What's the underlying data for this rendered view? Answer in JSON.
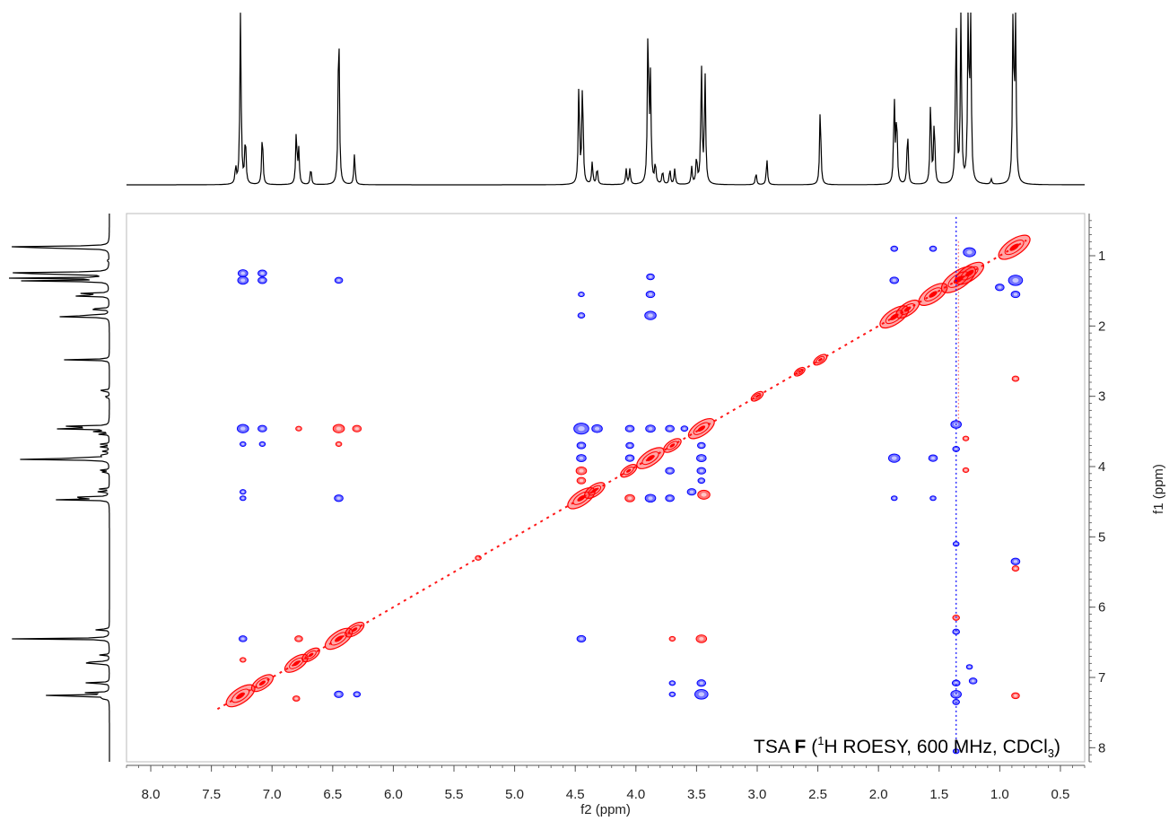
{
  "chart_data": {
    "type": "heatmap",
    "annotation": {
      "prefix": "TSA ",
      "bold": "F",
      "open": " (",
      "sup": "1",
      "mid": "H ROESY,  600 MHz, CDCl",
      "sub": "3",
      "close": ")"
    },
    "x_axis": {
      "label": "f2 (ppm)",
      "range": [
        8.2,
        0.3
      ],
      "ticks": [
        "8.0",
        "7.5",
        "7.0",
        "6.5",
        "6.0",
        "5.5",
        "5.0",
        "4.5",
        "4.0",
        "3.5",
        "3.0",
        "2.5",
        "2.0",
        "1.5",
        "1.0",
        "0.5"
      ],
      "tick_values": [
        8.0,
        7.5,
        7.0,
        6.5,
        6.0,
        5.5,
        5.0,
        4.5,
        4.0,
        3.5,
        3.0,
        2.5,
        2.0,
        1.5,
        1.0,
        0.5
      ]
    },
    "y_axis": {
      "label": "f1 (ppm)",
      "range": [
        0.4,
        8.2
      ],
      "ticks": [
        "1",
        "2",
        "3",
        "4",
        "5",
        "6",
        "7",
        "8"
      ],
      "tick_values": [
        1,
        2,
        3,
        4,
        5,
        6,
        7,
        8
      ]
    },
    "spectrum_1d": [
      {
        "ppm": 7.3,
        "height": 0.1
      },
      {
        "ppm": 7.26,
        "height": 1.0
      },
      {
        "ppm": 7.22,
        "height": 0.28
      },
      {
        "ppm": 7.08,
        "height": 0.31
      },
      {
        "ppm": 6.8,
        "height": 0.31
      },
      {
        "ppm": 6.78,
        "height": 0.2
      },
      {
        "ppm": 6.68,
        "height": 0.1
      },
      {
        "ppm": 6.45,
        "height": 1.0
      },
      {
        "ppm": 6.32,
        "height": 0.18
      },
      {
        "ppm": 4.47,
        "height": 0.59
      },
      {
        "ppm": 4.44,
        "height": 0.6
      },
      {
        "ppm": 4.36,
        "height": 0.13
      },
      {
        "ppm": 4.32,
        "height": 0.1
      },
      {
        "ppm": 4.08,
        "height": 0.09
      },
      {
        "ppm": 4.05,
        "height": 0.09
      },
      {
        "ppm": 3.9,
        "height": 0.93
      },
      {
        "ppm": 3.88,
        "height": 0.6
      },
      {
        "ppm": 3.84,
        "height": 0.12
      },
      {
        "ppm": 3.78,
        "height": 0.08
      },
      {
        "ppm": 3.72,
        "height": 0.09
      },
      {
        "ppm": 3.68,
        "height": 0.09
      },
      {
        "ppm": 3.54,
        "height": 0.1
      },
      {
        "ppm": 3.5,
        "height": 0.16
      },
      {
        "ppm": 3.46,
        "height": 0.7
      },
      {
        "ppm": 3.43,
        "height": 0.64
      },
      {
        "ppm": 3.01,
        "height": 0.07
      },
      {
        "ppm": 2.92,
        "height": 0.15
      },
      {
        "ppm": 2.48,
        "height": 0.46
      },
      {
        "ppm": 1.87,
        "height": 0.5
      },
      {
        "ppm": 1.85,
        "height": 0.4
      },
      {
        "ppm": 1.76,
        "height": 0.32
      },
      {
        "ppm": 1.57,
        "height": 0.5
      },
      {
        "ppm": 1.54,
        "height": 0.38
      },
      {
        "ppm": 1.36,
        "height": 1.0
      },
      {
        "ppm": 1.32,
        "height": 1.0
      },
      {
        "ppm": 1.26,
        "height": 1.0
      },
      {
        "ppm": 1.24,
        "height": 1.0
      },
      {
        "ppm": 1.07,
        "height": 0.03
      },
      {
        "ppm": 0.89,
        "height": 1.0
      },
      {
        "ppm": 0.87,
        "height": 1.0
      }
    ],
    "diagonal_peaks": [
      {
        "ppm": 7.26,
        "size": 1.6
      },
      {
        "ppm": 7.08,
        "size": 1.1
      },
      {
        "ppm": 6.8,
        "size": 1.2
      },
      {
        "ppm": 6.68,
        "size": 0.8
      },
      {
        "ppm": 6.45,
        "size": 1.5
      },
      {
        "ppm": 6.32,
        "size": 0.9
      },
      {
        "ppm": 4.45,
        "size": 1.5
      },
      {
        "ppm": 4.34,
        "size": 1.0
      },
      {
        "ppm": 4.06,
        "size": 0.7
      },
      {
        "ppm": 3.88,
        "size": 1.5
      },
      {
        "ppm": 3.7,
        "size": 0.8
      },
      {
        "ppm": 3.46,
        "size": 1.4
      },
      {
        "ppm": 3.0,
        "size": 0.4
      },
      {
        "ppm": 2.65,
        "size": 0.3
      },
      {
        "ppm": 2.48,
        "size": 0.5
      },
      {
        "ppm": 1.87,
        "size": 1.6
      },
      {
        "ppm": 1.76,
        "size": 1.2
      },
      {
        "ppm": 1.55,
        "size": 1.6
      },
      {
        "ppm": 1.34,
        "size": 2.0
      },
      {
        "ppm": 1.25,
        "size": 1.6
      },
      {
        "ppm": 0.88,
        "size": 1.8
      }
    ],
    "cross_peaks": [
      {
        "f2": 7.24,
        "f1": 1.25,
        "sign": "negative",
        "size": 0.7
      },
      {
        "f2": 7.24,
        "f1": 1.35,
        "sign": "negative",
        "size": 0.8
      },
      {
        "f2": 7.08,
        "f1": 1.25,
        "sign": "negative",
        "size": 0.6
      },
      {
        "f2": 7.08,
        "f1": 1.35,
        "sign": "negative",
        "size": 0.6
      },
      {
        "f2": 6.45,
        "f1": 1.35,
        "sign": "negative",
        "size": 0.5
      },
      {
        "f2": 3.88,
        "f1": 1.3,
        "sign": "negative",
        "size": 0.5
      },
      {
        "f2": 3.88,
        "f1": 1.55,
        "sign": "negative",
        "size": 0.6
      },
      {
        "f2": 3.88,
        "f1": 1.85,
        "sign": "negative",
        "size": 0.9
      },
      {
        "f2": 4.45,
        "f1": 1.55,
        "sign": "negative",
        "size": 0.3
      },
      {
        "f2": 4.45,
        "f1": 1.85,
        "sign": "negative",
        "size": 0.4
      },
      {
        "f2": 7.24,
        "f1": 3.46,
        "sign": "negative",
        "size": 0.9
      },
      {
        "f2": 7.08,
        "f1": 3.46,
        "sign": "negative",
        "size": 0.6
      },
      {
        "f2": 6.78,
        "f1": 3.46,
        "sign": "positive",
        "size": 0.3
      },
      {
        "f2": 6.45,
        "f1": 3.46,
        "sign": "positive",
        "size": 0.9
      },
      {
        "f2": 6.3,
        "f1": 3.46,
        "sign": "positive",
        "size": 0.6
      },
      {
        "f2": 7.24,
        "f1": 3.68,
        "sign": "negative",
        "size": 0.3
      },
      {
        "f2": 7.08,
        "f1": 3.68,
        "sign": "negative",
        "size": 0.3
      },
      {
        "f2": 6.45,
        "f1": 3.68,
        "sign": "positive",
        "size": 0.3
      },
      {
        "f2": 7.24,
        "f1": 4.36,
        "sign": "negative",
        "size": 0.3
      },
      {
        "f2": 7.24,
        "f1": 4.45,
        "sign": "negative",
        "size": 0.3
      },
      {
        "f2": 6.45,
        "f1": 4.45,
        "sign": "negative",
        "size": 0.6
      },
      {
        "f2": 4.45,
        "f1": 3.46,
        "sign": "negative",
        "size": 1.3
      },
      {
        "f2": 4.32,
        "f1": 3.46,
        "sign": "negative",
        "size": 0.8
      },
      {
        "f2": 4.05,
        "f1": 3.46,
        "sign": "negative",
        "size": 0.6
      },
      {
        "f2": 3.88,
        "f1": 3.46,
        "sign": "negative",
        "size": 0.7
      },
      {
        "f2": 3.72,
        "f1": 3.46,
        "sign": "negative",
        "size": 0.6
      },
      {
        "f2": 3.6,
        "f1": 3.46,
        "sign": "negative",
        "size": 0.4
      },
      {
        "f2": 4.45,
        "f1": 3.7,
        "sign": "negative",
        "size": 0.6
      },
      {
        "f2": 4.05,
        "f1": 3.7,
        "sign": "negative",
        "size": 0.5
      },
      {
        "f2": 3.46,
        "f1": 3.7,
        "sign": "negative",
        "size": 0.5
      },
      {
        "f2": 4.45,
        "f1": 3.88,
        "sign": "negative",
        "size": 0.7
      },
      {
        "f2": 4.05,
        "f1": 3.88,
        "sign": "negative",
        "size": 0.6
      },
      {
        "f2": 3.46,
        "f1": 3.88,
        "sign": "negative",
        "size": 0.7
      },
      {
        "f2": 4.45,
        "f1": 4.06,
        "sign": "positive",
        "size": 0.8
      },
      {
        "f2": 3.72,
        "f1": 4.06,
        "sign": "negative",
        "size": 0.6
      },
      {
        "f2": 3.46,
        "f1": 4.06,
        "sign": "negative",
        "size": 0.6
      },
      {
        "f2": 4.45,
        "f1": 4.2,
        "sign": "positive",
        "size": 0.6
      },
      {
        "f2": 3.46,
        "f1": 4.2,
        "sign": "negative",
        "size": 0.4
      },
      {
        "f2": 4.05,
        "f1": 4.45,
        "sign": "positive",
        "size": 0.7
      },
      {
        "f2": 3.88,
        "f1": 4.45,
        "sign": "negative",
        "size": 0.8
      },
      {
        "f2": 3.72,
        "f1": 4.45,
        "sign": "negative",
        "size": 0.6
      },
      {
        "f2": 3.54,
        "f1": 4.36,
        "sign": "negative",
        "size": 0.6
      },
      {
        "f2": 3.44,
        "f1": 4.4,
        "sign": "positive",
        "size": 1.0
      },
      {
        "f2": 1.87,
        "f1": 3.88,
        "sign": "negative",
        "size": 0.9
      },
      {
        "f2": 1.55,
        "f1": 3.88,
        "sign": "negative",
        "size": 0.6
      },
      {
        "f2": 1.87,
        "f1": 4.45,
        "sign": "negative",
        "size": 0.3
      },
      {
        "f2": 1.55,
        "f1": 4.45,
        "sign": "negative",
        "size": 0.3
      },
      {
        "f2": 1.36,
        "f1": 3.4,
        "sign": "negative",
        "size": 0.8
      },
      {
        "f2": 1.36,
        "f1": 3.75,
        "sign": "negative",
        "size": 0.4
      },
      {
        "f2": 1.28,
        "f1": 3.6,
        "sign": "positive",
        "size": 0.3
      },
      {
        "f2": 1.28,
        "f1": 4.05,
        "sign": "positive",
        "size": 0.3
      },
      {
        "f2": 0.87,
        "f1": 2.75,
        "sign": "positive",
        "size": 0.4
      },
      {
        "f2": 0.87,
        "f1": 5.35,
        "sign": "negative",
        "size": 0.6
      },
      {
        "f2": 0.87,
        "f1": 5.45,
        "sign": "positive",
        "size": 0.4
      },
      {
        "f2": 1.36,
        "f1": 5.1,
        "sign": "negative",
        "size": 0.3
      },
      {
        "f2": 5.3,
        "f1": 5.3,
        "sign": "positive",
        "size": 0.3
      },
      {
        "f2": 7.24,
        "f1": 6.45,
        "sign": "negative",
        "size": 0.5
      },
      {
        "f2": 7.24,
        "f1": 6.75,
        "sign": "positive",
        "size": 0.3
      },
      {
        "f2": 6.78,
        "f1": 6.45,
        "sign": "positive",
        "size": 0.5
      },
      {
        "f2": 6.8,
        "f1": 7.3,
        "sign": "positive",
        "size": 0.4
      },
      {
        "f2": 6.45,
        "f1": 7.24,
        "sign": "negative",
        "size": 0.6
      },
      {
        "f2": 6.3,
        "f1": 7.24,
        "sign": "negative",
        "size": 0.4
      },
      {
        "f2": 4.45,
        "f1": 6.45,
        "sign": "negative",
        "size": 0.6
      },
      {
        "f2": 3.46,
        "f1": 6.45,
        "sign": "positive",
        "size": 0.8
      },
      {
        "f2": 3.7,
        "f1": 6.45,
        "sign": "positive",
        "size": 0.3
      },
      {
        "f2": 3.46,
        "f1": 7.08,
        "sign": "negative",
        "size": 0.6
      },
      {
        "f2": 3.46,
        "f1": 7.24,
        "sign": "negative",
        "size": 1.1
      },
      {
        "f2": 3.7,
        "f1": 7.24,
        "sign": "negative",
        "size": 0.3
      },
      {
        "f2": 3.7,
        "f1": 7.08,
        "sign": "negative",
        "size": 0.3
      },
      {
        "f2": 1.36,
        "f1": 6.15,
        "sign": "positive",
        "size": 0.4
      },
      {
        "f2": 1.36,
        "f1": 6.35,
        "sign": "negative",
        "size": 0.4
      },
      {
        "f2": 1.36,
        "f1": 7.08,
        "sign": "negative",
        "size": 0.5
      },
      {
        "f2": 1.36,
        "f1": 7.24,
        "sign": "negative",
        "size": 0.8
      },
      {
        "f2": 1.36,
        "f1": 7.35,
        "sign": "negative",
        "size": 0.4
      },
      {
        "f2": 1.22,
        "f1": 7.05,
        "sign": "negative",
        "size": 0.5
      },
      {
        "f2": 1.25,
        "f1": 6.85,
        "sign": "negative",
        "size": 0.3
      },
      {
        "f2": 0.87,
        "f1": 7.26,
        "sign": "positive",
        "size": 0.5
      },
      {
        "f2": 1.36,
        "f1": 8.05,
        "sign": "negative",
        "size": 0.3
      },
      {
        "f2": 1.87,
        "f1": 1.35,
        "sign": "negative",
        "size": 0.6
      },
      {
        "f2": 1.55,
        "f1": 0.9,
        "sign": "negative",
        "size": 0.4
      },
      {
        "f2": 1.87,
        "f1": 0.9,
        "sign": "negative",
        "size": 0.4
      },
      {
        "f2": 0.87,
        "f1": 1.35,
        "sign": "negative",
        "size": 1.2
      },
      {
        "f2": 1.25,
        "f1": 0.95,
        "sign": "negative",
        "size": 1.0
      },
      {
        "f2": 0.87,
        "f1": 1.55,
        "sign": "negative",
        "size": 0.6
      },
      {
        "f2": 1.0,
        "f1": 1.45,
        "sign": "negative",
        "size": 0.6
      }
    ],
    "colors": {
      "positive": "#ff0000",
      "negative": "#0000ff",
      "trace": "#000000",
      "axis": "#555555",
      "frame": "#bbbbbb"
    }
  }
}
